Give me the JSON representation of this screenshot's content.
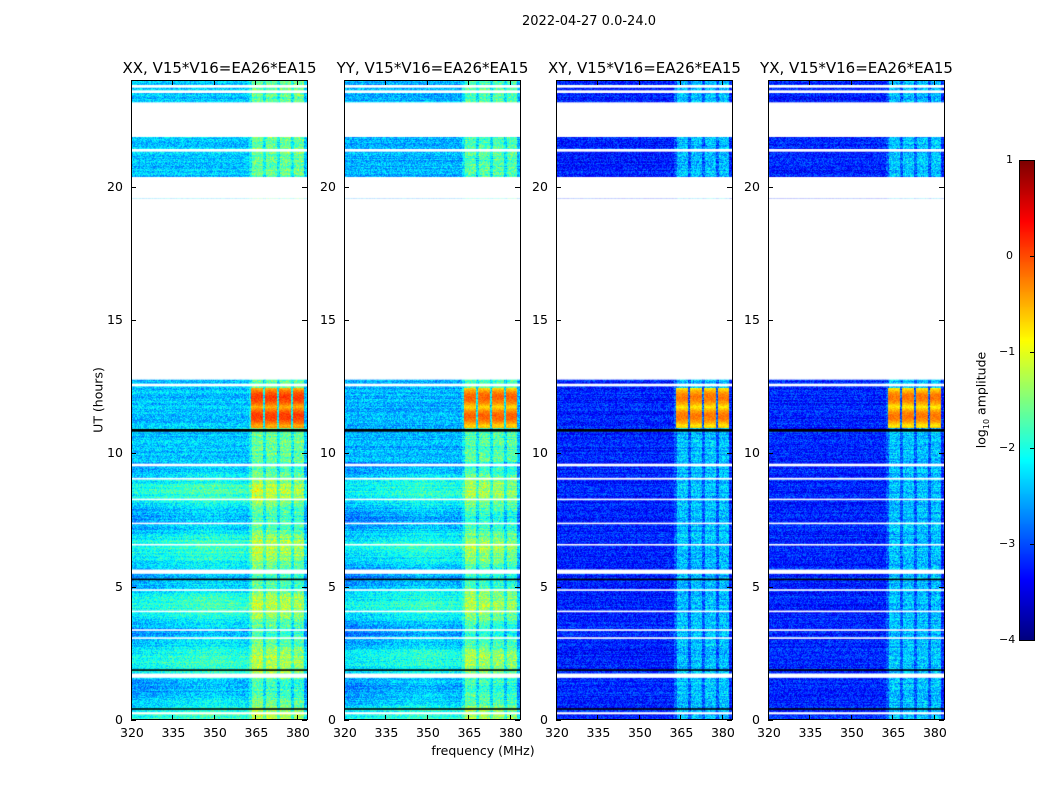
{
  "chart_data": {
    "type": "heatmap",
    "title": "2022-04-27 0.0-24.0",
    "xlabel": "frequency (MHz)",
    "ylabel": "UT (hours)",
    "xlim": [
      320,
      384
    ],
    "ylim": [
      0,
      24
    ],
    "xticks": [
      320,
      335,
      350,
      365,
      380
    ],
    "yticks": [
      0,
      5,
      10,
      15,
      20
    ],
    "colormap": "jet",
    "colorbar": {
      "label_main": "log",
      "label_sub": "10",
      "label_rest": " amplitude",
      "range": [
        -4,
        1
      ],
      "ticks": [
        1,
        0,
        -1,
        -2,
        -3,
        -4
      ],
      "tick_labels": [
        "1",
        "0",
        "−1",
        "−2",
        "−3",
        "−4"
      ]
    },
    "panels": [
      {
        "title": "XX, V15*V16=EA26*EA15",
        "base_level": -2.4,
        "rfi_level": 0.1
      },
      {
        "title": "YY, V15*V16=EA26*EA15",
        "base_level": -2.5,
        "rfi_level": -0.1
      },
      {
        "title": "XY, V15*V16=EA26*EA15",
        "base_level": -3.2,
        "rfi_level": -0.2
      },
      {
        "title": "YX, V15*V16=EA26*EA15",
        "base_level": -3.2,
        "rfi_level": -0.2
      }
    ],
    "rfi_band_mhz": [
      362,
      382
    ],
    "rfi_burst_hours": [
      11.0,
      12.5
    ],
    "flagged_hours": [
      [
        21.9,
        23.2
      ],
      [
        19.6,
        20.4
      ],
      [
        12.8,
        19.6
      ],
      [
        23.55,
        23.65
      ],
      [
        23.75,
        23.85
      ],
      [
        21.35,
        21.45
      ],
      [
        12.55,
        12.65
      ],
      [
        9.55,
        9.65
      ],
      [
        9.05,
        9.12
      ],
      [
        8.28,
        8.34
      ],
      [
        7.38,
        7.44
      ],
      [
        6.58,
        6.64
      ],
      [
        5.52,
        5.68
      ],
      [
        4.88,
        4.94
      ],
      [
        4.08,
        4.14
      ],
      [
        3.38,
        3.44
      ],
      [
        3.08,
        3.14
      ],
      [
        1.62,
        1.78
      ],
      [
        0.25,
        0.33
      ]
    ],
    "dark_rows_hours": [
      [
        10.85,
        10.95
      ],
      [
        5.28,
        5.34
      ],
      [
        1.88,
        1.94
      ],
      [
        0.42,
        0.48
      ]
    ]
  }
}
